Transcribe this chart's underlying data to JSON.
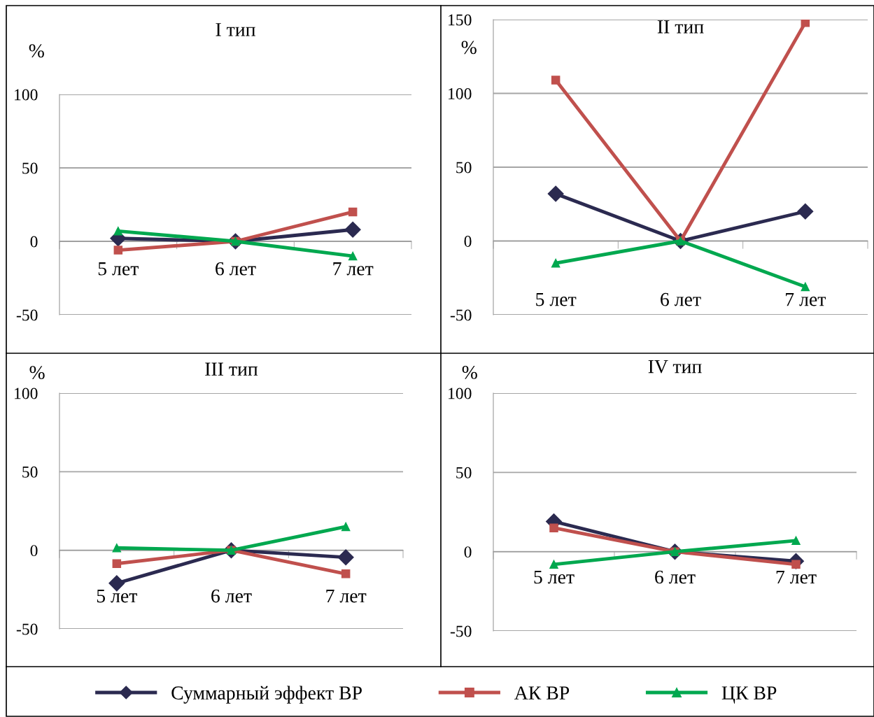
{
  "chart_data": [
    {
      "type": "line",
      "title": "I тип",
      "ylabel": "%",
      "categories": [
        "5 лет",
        "6 лет",
        "7 лет"
      ],
      "ylim": [
        -50,
        100
      ],
      "yticks": [
        -50,
        0,
        50,
        100
      ],
      "grid": "y",
      "legend": "bottom",
      "series": [
        {
          "name": "Суммарный эффект ВР",
          "color": "#2b2a50",
          "marker": "diamond",
          "values": [
            2,
            0,
            8
          ]
        },
        {
          "name": "АК ВР",
          "color": "#c0504d",
          "marker": "square",
          "values": [
            -6,
            0,
            20
          ]
        },
        {
          "name": "ЦК ВР",
          "color": "#00a84f",
          "marker": "triangle",
          "values": [
            7,
            0,
            -10
          ]
        }
      ]
    },
    {
      "type": "line",
      "title": "II тип",
      "ylabel": "%",
      "categories": [
        "5 лет",
        "6 лет",
        "7 лет"
      ],
      "ylim": [
        -50,
        150
      ],
      "yticks": [
        -50,
        0,
        50,
        100,
        150
      ],
      "grid": "y",
      "series": [
        {
          "name": "Суммарный эффект ВР",
          "color": "#2b2a50",
          "marker": "diamond",
          "values": [
            32,
            0,
            20
          ]
        },
        {
          "name": "АК ВР",
          "color": "#c0504d",
          "marker": "square",
          "values": [
            109,
            0,
            148
          ]
        },
        {
          "name": "ЦК ВР",
          "color": "#00a84f",
          "marker": "triangle",
          "values": [
            -15,
            0,
            -31
          ]
        }
      ]
    },
    {
      "type": "line",
      "title": "III тип",
      "ylabel": "%",
      "categories": [
        "5 лет",
        "6 лет",
        "7 лет"
      ],
      "ylim": [
        -50,
        100
      ],
      "yticks": [
        -50,
        0,
        50,
        100
      ],
      "grid": "y",
      "series": [
        {
          "name": "Суммарный эффект ВР",
          "color": "#2b2a50",
          "marker": "diamond",
          "values": [
            -21,
            0,
            -4.5
          ]
        },
        {
          "name": "АК ВР",
          "color": "#c0504d",
          "marker": "square",
          "values": [
            -8.5,
            0,
            -15
          ]
        },
        {
          "name": "ЦК ВР",
          "color": "#00a84f",
          "marker": "triangle",
          "values": [
            1.5,
            0,
            15
          ]
        }
      ]
    },
    {
      "type": "line",
      "title": "IV тип",
      "ylabel": "%",
      "categories": [
        "5 лет",
        "6 лет",
        "7 лет"
      ],
      "ylim": [
        -50,
        100
      ],
      "yticks": [
        -50,
        0,
        50,
        100
      ],
      "grid": "y",
      "series": [
        {
          "name": "Суммарный эффект ВР",
          "color": "#2b2a50",
          "marker": "diamond",
          "values": [
            19,
            0,
            -6
          ]
        },
        {
          "name": "АК ВР",
          "color": "#c0504d",
          "marker": "square",
          "values": [
            15,
            0,
            -8
          ]
        },
        {
          "name": "ЦК ВР",
          "color": "#00a84f",
          "marker": "triangle",
          "values": [
            -8,
            0,
            7
          ]
        }
      ]
    }
  ]
}
